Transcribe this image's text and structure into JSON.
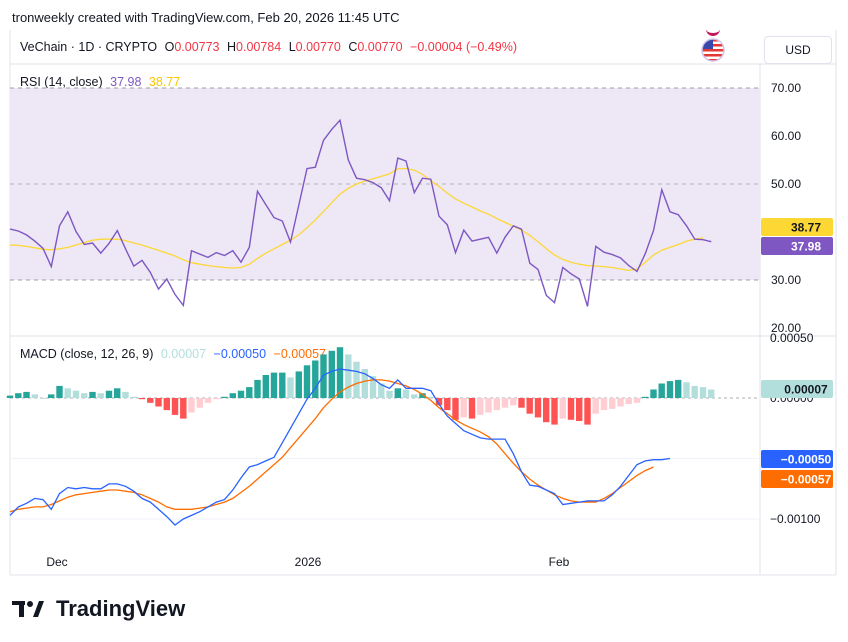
{
  "header": "tronweekly created with TradingView.com, Feb 20, 2026 11:45 UTC",
  "symbol": {
    "name": "VeChain · 1D · CRYPTO",
    "o_label": "O",
    "o": "0.00773",
    "h_label": "H",
    "h": "0.00784",
    "l_label": "L",
    "l": "0.00770",
    "c_label": "C",
    "c": "0.00770",
    "change": "−0.00004 (−0.49%)"
  },
  "currency": "USD",
  "flag_icon": "us-flag-icon",
  "rsi": {
    "label": "RSI (14, close)",
    "value": "37.98",
    "ma_value": "38.77",
    "y_ticks": [
      "70.00",
      "60.00",
      "50.00",
      "30.00",
      "20.00"
    ]
  },
  "macd": {
    "label": "MACD (close, 12, 26, 9)",
    "hist_value": "0.00007",
    "macd_value": "−0.00050",
    "signal_value": "−0.00057",
    "y_ticks": [
      "0.00050",
      "0.00000",
      "−0.00100"
    ]
  },
  "x_labels": [
    "Dec",
    "2026",
    "Feb"
  ],
  "brand": "TradingView",
  "colors": {
    "rsi_line": "#7e57c2",
    "rsi_ma": "#fdd835",
    "rsi_band": "#ede7f6",
    "macd_line": "#2962ff",
    "signal_line": "#ff6d00",
    "hist_up_strong": "#26a69a",
    "hist_up_weak": "#b2dfdb",
    "hist_down_strong": "#ff5252",
    "hist_down_weak": "#ffcdd2",
    "up_text": "#089981",
    "down_text": "#f23645"
  },
  "chart_data": [
    {
      "type": "line",
      "title": "RSI (14, close)",
      "ylim": [
        20,
        75
      ],
      "bands": [
        30,
        50,
        70
      ],
      "series": [
        {
          "name": "RSI",
          "values": [
            40.6,
            40.2,
            39.4,
            38.1,
            36.6,
            32.8,
            41.3,
            44.2,
            40.1,
            37.4,
            37.7,
            35.6,
            37.6,
            40.3,
            36.5,
            32.9,
            34.1,
            31.6,
            28.1,
            30.2,
            27.0,
            24.7,
            36.1,
            35.4,
            34.7,
            35.7,
            35.1,
            36.1,
            33.7,
            36.8,
            48.5,
            45.7,
            43.0,
            42.3,
            37.9,
            45.6,
            53.2,
            53.5,
            59.1,
            61.4,
            63.3,
            55.0,
            51.2,
            50.9,
            50.3,
            49.2,
            46.5,
            55.4,
            54.8,
            48.2,
            51.2,
            51.0,
            43.3,
            41.5,
            35.7,
            40.4,
            38.1,
            38.5,
            38.9,
            35.6,
            38.9,
            41.3,
            40.6,
            33.5,
            32.2,
            26.8,
            25.3,
            32.6,
            31.3,
            30.2,
            24.5,
            37.0,
            35.8,
            35.3,
            34.6,
            33.0,
            31.8,
            35.5,
            40.3,
            48.8,
            44.2,
            43.6,
            41.3,
            38.5,
            38.4,
            37.98
          ]
        },
        {
          "name": "RSI-based MA",
          "values": [
            37.3,
            37.2,
            37.0,
            36.7,
            36.4,
            36.3,
            36.5,
            36.8,
            37.3,
            37.8,
            38.3,
            38.5,
            38.5,
            38.5,
            38.2,
            37.7,
            37.3,
            36.7,
            36.2,
            35.6,
            35.0,
            34.2,
            33.6,
            33.3,
            33.0,
            32.8,
            32.6,
            32.5,
            32.6,
            33.3,
            34.5,
            35.6,
            36.5,
            37.4,
            38.3,
            39.4,
            40.9,
            42.5,
            44.3,
            46.1,
            47.9,
            49.1,
            50.0,
            50.6,
            51.1,
            51.6,
            52.1,
            53.2,
            53.2,
            52.9,
            52.0,
            50.7,
            49.5,
            48.1,
            46.9,
            46.0,
            45.2,
            44.4,
            43.7,
            42.8,
            42.0,
            41.2,
            40.4,
            39.3,
            38.0,
            36.5,
            35.2,
            34.3,
            33.7,
            33.3,
            33.0,
            32.9,
            32.8,
            32.6,
            32.3,
            32.0,
            32.3,
            33.7,
            35.2,
            36.2,
            36.8,
            37.4,
            38.1,
            38.5,
            38.77
          ]
        }
      ]
    },
    {
      "type": "bar",
      "title": "MACD (close, 12, 26, 9)",
      "ylim": [
        -0.0013,
        0.0005
      ],
      "series": [
        {
          "name": "Histogram",
          "values": [
            2e-05,
            4e-05,
            5e-05,
            3e-05,
            0,
            3e-05,
            0.0001,
            8e-05,
            6e-05,
            4e-05,
            5e-05,
            4e-05,
            6e-05,
            8e-05,
            5e-05,
            1e-05,
            -1e-05,
            -4e-05,
            -7e-05,
            -0.0001,
            -0.00014,
            -0.00017,
            -0.00012,
            -8e-05,
            -4e-05,
            -1e-05,
            1e-05,
            4e-05,
            6e-05,
            9e-05,
            0.00015,
            0.00019,
            0.00021,
            0.00021,
            0.00017,
            0.00022,
            0.00027,
            0.00031,
            0.00036,
            0.00039,
            0.00042,
            0.00036,
            0.0003,
            0.00024,
            0.00018,
            0.00012,
            6e-05,
            8e-05,
            7e-05,
            3e-05,
            4e-05,
            1e-05,
            -6e-05,
            -0.0001,
            -0.00018,
            -0.00016,
            -0.00017,
            -0.00014,
            -0.00012,
            -0.0001,
            -8e-05,
            -6e-05,
            -8e-05,
            -0.00013,
            -0.00016,
            -0.0002,
            -0.00022,
            -0.00017,
            -0.00018,
            -0.00019,
            -0.00022,
            -0.00013,
            -0.0001,
            -9e-05,
            -7e-05,
            -5e-05,
            -4e-05,
            1e-05,
            7e-05,
            0.00012,
            0.00014,
            0.00015,
            0.00013,
            0.0001,
            9e-05,
            7e-05
          ]
        },
        {
          "name": "MACD",
          "values": [
            -0.00097,
            -0.0009,
            -0.00087,
            -0.00083,
            -0.00084,
            -0.00092,
            -0.00079,
            -0.00074,
            -0.00075,
            -0.00074,
            -0.00075,
            -0.00075,
            -0.00071,
            -0.00071,
            -0.00073,
            -0.00077,
            -0.00083,
            -0.00086,
            -0.00092,
            -0.00098,
            -0.00105,
            -0.001,
            -0.00097,
            -0.00094,
            -0.0009,
            -0.00086,
            -0.00084,
            -0.00076,
            -0.00066,
            -0.00057,
            -0.00055,
            -0.00052,
            -0.00049,
            -0.00037,
            -0.00025,
            -0.00013,
            -1e-05,
            8e-05,
            0.00019,
            0.00022,
            0.00024,
            0.00023,
            0.00022,
            0.0002,
            0.00016,
            0.00011,
            8e-05,
            0.00015,
            8e-05,
            8e-05,
            8e-05,
            6e-05,
            -5e-05,
            -0.00015,
            -0.00021,
            -0.00027,
            -0.0003,
            -0.00033,
            -0.00034,
            -0.00034,
            -0.00034,
            -0.00046,
            -0.00061,
            -0.00072,
            -0.00073,
            -0.00076,
            -0.00079,
            -0.00088,
            -0.00087,
            -0.00086,
            -0.00085,
            -0.00085,
            -0.00085,
            -0.0008,
            -0.00073,
            -0.00064,
            -0.00055,
            -0.00052,
            -0.00051,
            -0.00051,
            -0.0005
          ]
        },
        {
          "name": "Signal",
          "values": [
            -0.00094,
            -0.00092,
            -0.00091,
            -0.0009,
            -0.0009,
            -0.00088,
            -0.00085,
            -0.00082,
            -0.0008,
            -0.00079,
            -0.00078,
            -0.00077,
            -0.00076,
            -0.00076,
            -0.00077,
            -0.00078,
            -0.0008,
            -0.00083,
            -0.00086,
            -0.0009,
            -0.00092,
            -0.00092,
            -0.00092,
            -0.00091,
            -0.0009,
            -0.00088,
            -0.00086,
            -0.00083,
            -0.00078,
            -0.00073,
            -0.00067,
            -0.00061,
            -0.00055,
            -0.00049,
            -0.00041,
            -0.00033,
            -0.00025,
            -0.00017,
            -8e-05,
            -1e-05,
            5e-05,
            9e-05,
            0.00012,
            0.00014,
            0.00015,
            0.00015,
            0.00014,
            0.00012,
            0.0001,
            7e-05,
            3e-05,
            -2e-05,
            -8e-05,
            -0.00013,
            -0.00018,
            -0.00022,
            -0.00025,
            -0.00028,
            -0.00032,
            -0.00038,
            -0.00046,
            -0.00054,
            -0.00061,
            -0.00067,
            -0.00072,
            -0.00076,
            -0.0008,
            -0.00083,
            -0.00085,
            -0.00086,
            -0.00086,
            -0.00086,
            -0.00083,
            -0.00079,
            -0.00074,
            -0.00069,
            -0.00064,
            -0.0006,
            -0.00057
          ]
        }
      ]
    }
  ]
}
